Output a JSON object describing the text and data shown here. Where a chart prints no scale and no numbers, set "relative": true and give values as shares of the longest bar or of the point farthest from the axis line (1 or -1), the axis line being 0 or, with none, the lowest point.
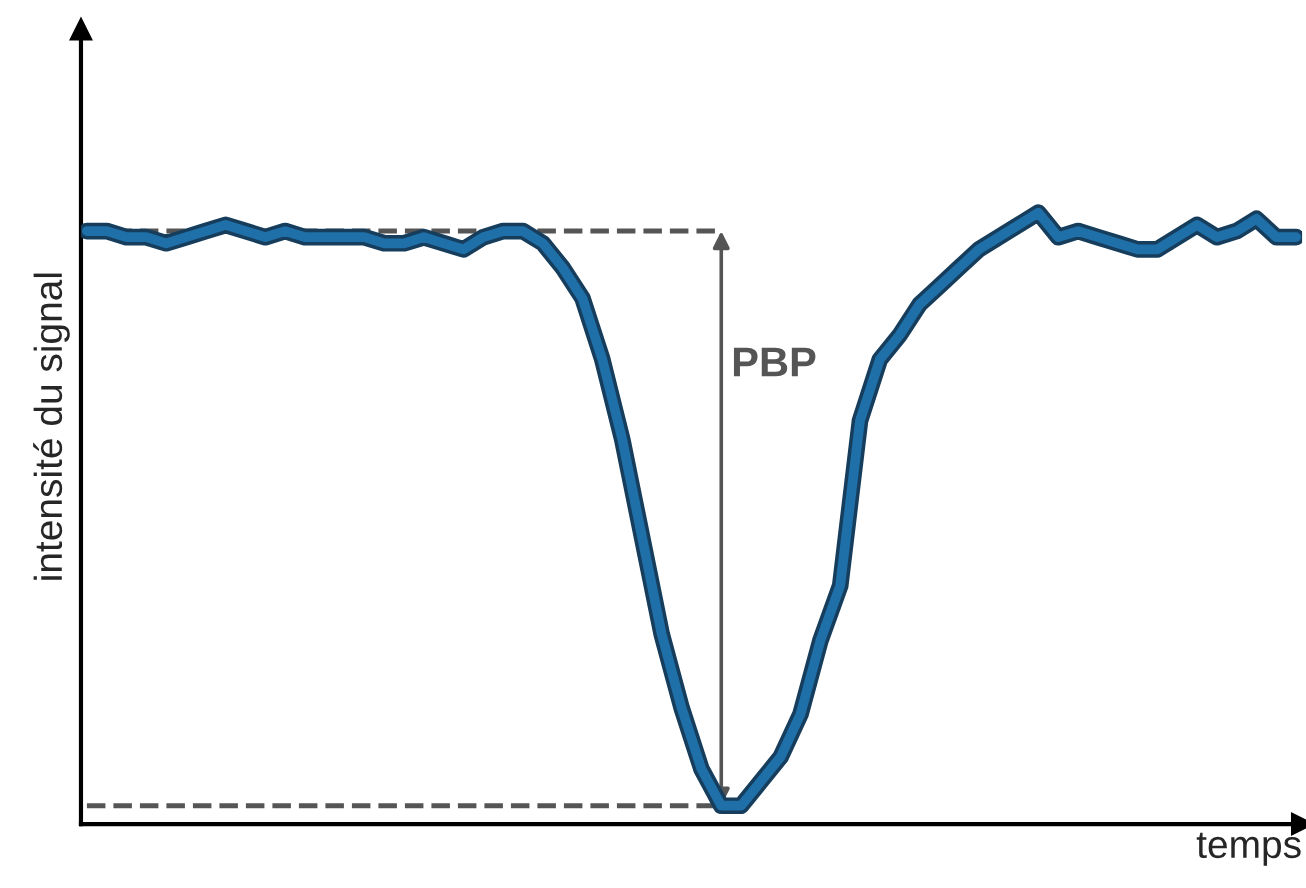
{
  "chart_data": {
    "type": "line",
    "relative": true,
    "xlabel": "temps",
    "ylabel": "intensité du signal",
    "categories": [
      null,
      null,
      null,
      null,
      null,
      null,
      null,
      null,
      null,
      null,
      null,
      null,
      null,
      null,
      null,
      null,
      null,
      null,
      null,
      null,
      null,
      null,
      null,
      null,
      null,
      null,
      null,
      null,
      null,
      null,
      null,
      null,
      null,
      null,
      null,
      null,
      null,
      null,
      null,
      null,
      null,
      null,
      null,
      null,
      null,
      null,
      null,
      null,
      null,
      null,
      null,
      null,
      null,
      null,
      null,
      null,
      null,
      null,
      null,
      null,
      null,
      null
    ],
    "series": [
      {
        "color": "#1f6fa8",
        "values": [
          0.97,
          0.97,
          0.96,
          0.96,
          0.95,
          0.96,
          0.97,
          0.98,
          0.97,
          0.96,
          0.97,
          0.96,
          0.96,
          0.96,
          0.96,
          0.95,
          0.95,
          0.96,
          0.95,
          0.94,
          0.96,
          0.97,
          0.97,
          0.95,
          0.91,
          0.86,
          0.76,
          0.63,
          0.47,
          0.31,
          0.19,
          0.09,
          0.03,
          0.03,
          0.07,
          0.11,
          0.18,
          0.3,
          0.39,
          0.66,
          0.76,
          0.8,
          0.85,
          0.88,
          0.91,
          0.94,
          0.96,
          0.98,
          1.0,
          0.96,
          0.97,
          0.96,
          0.95,
          0.94,
          0.94,
          0.96,
          0.98,
          0.96,
          0.97,
          0.99,
          0.96,
          0.96
        ]
      }
    ],
    "ref_lines": [
      {
        "axis": "y",
        "value": 0.97,
        "color": "#555555",
        "line_style": "dashed"
      },
      {
        "axis": "y",
        "value": 0.03,
        "color": "#555555",
        "line_style": "dashed"
      }
    ],
    "annotations": [
      "PBP"
    ],
    "legend": false,
    "marker": "none",
    "line_style": "solid"
  }
}
